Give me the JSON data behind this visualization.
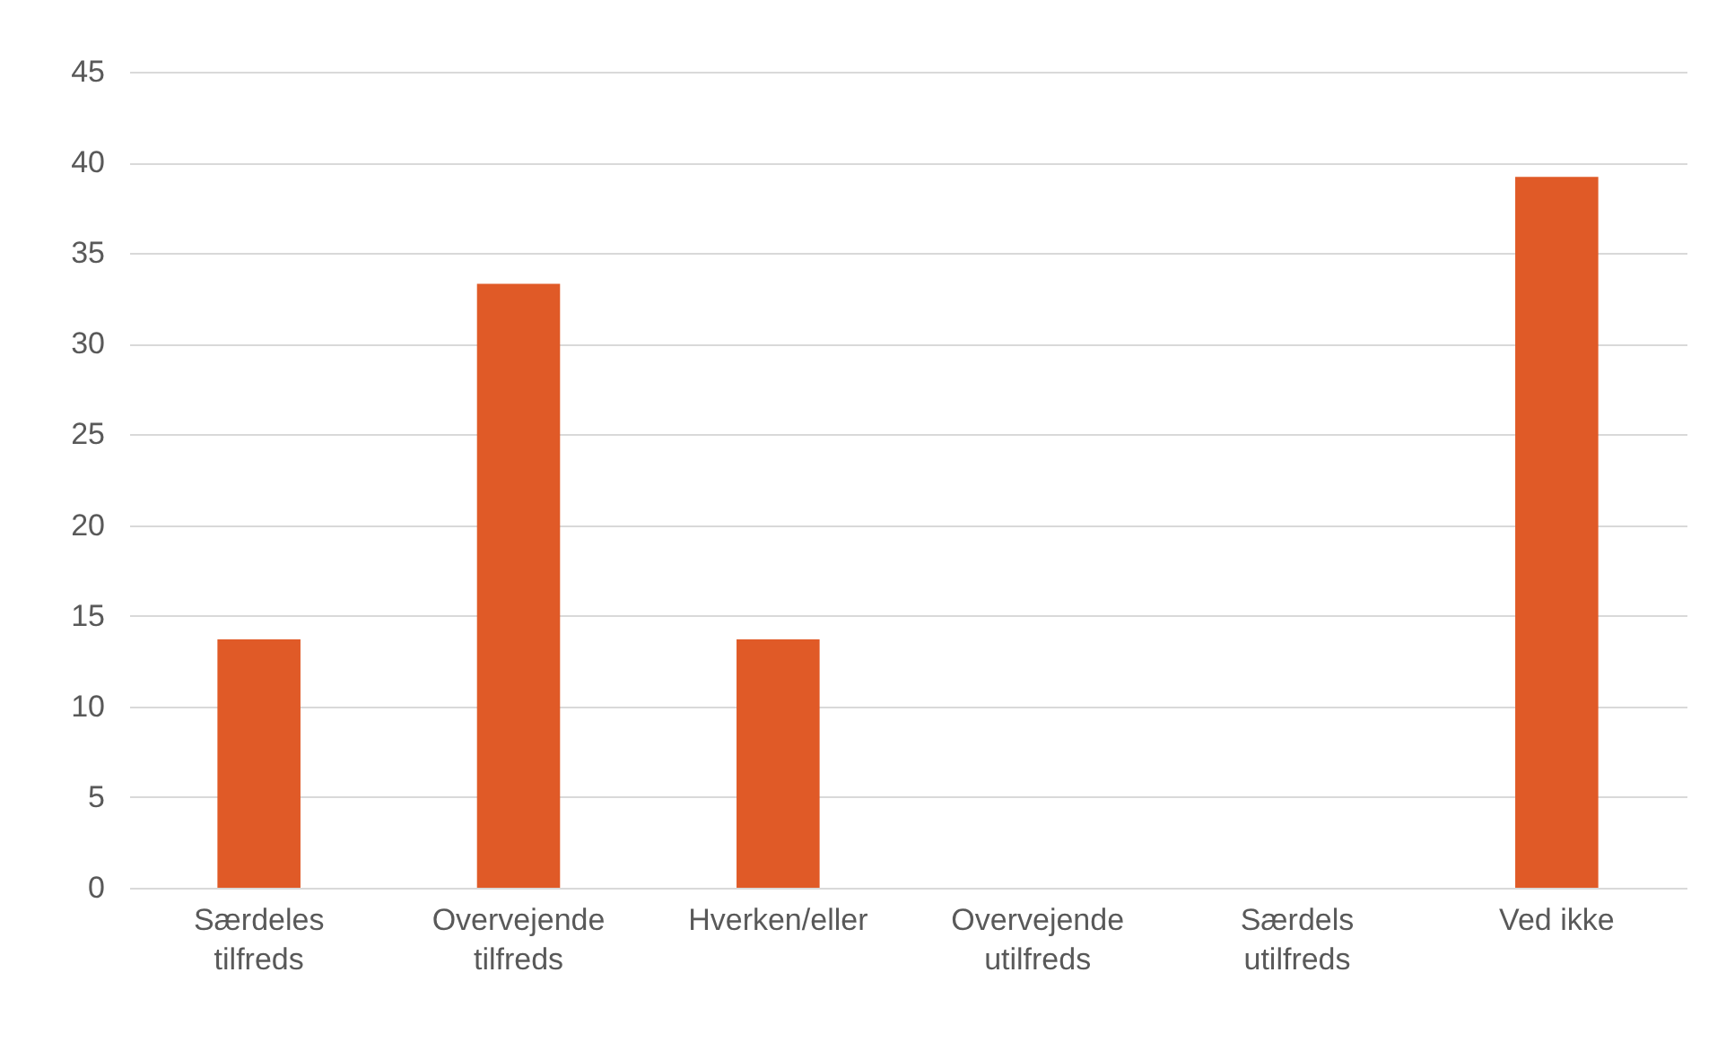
{
  "chart_data": {
    "type": "bar",
    "categories": [
      "Særdeles tilfreds",
      "Overvejende tilfreds",
      "Hverken/eller",
      "Overvejende utilfreds",
      "Særdels utilfreds",
      "Ved ikke"
    ],
    "values": [
      13.7,
      33.3,
      13.7,
      0,
      0,
      39.2
    ],
    "color": "#e05a27",
    "ylim": [
      0,
      45
    ],
    "yticks": [
      0,
      5,
      10,
      15,
      20,
      25,
      30,
      35,
      40,
      45
    ],
    "grid": "y"
  }
}
